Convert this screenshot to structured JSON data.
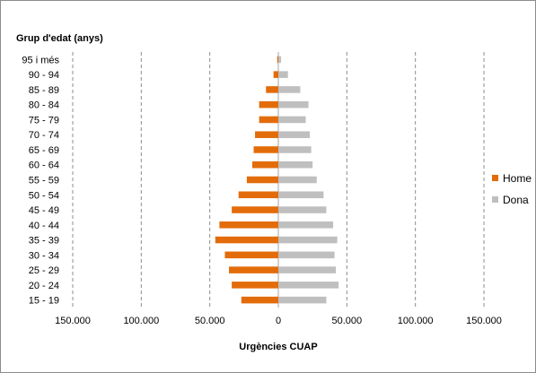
{
  "chart_data": {
    "type": "bar",
    "orientation": "horizontal-population-pyramid",
    "ylabel": "Grup d'edat (anys)",
    "xlabel": "Urgències  CUAP",
    "categories": [
      "95 i més",
      "90 - 94",
      "85 - 89",
      "80 - 84",
      "75 - 79",
      "70 - 74",
      "65 - 69",
      "60 - 64",
      "55 - 59",
      "50 - 54",
      "45 - 49",
      "40 - 44",
      "35 - 39",
      "30 - 34",
      "25 - 29",
      "20 - 24",
      "15 - 19"
    ],
    "series": [
      {
        "name": "Home",
        "color": "#E36C0A",
        "values": [
          800,
          3500,
          9000,
          14000,
          14000,
          17000,
          18000,
          19000,
          23000,
          29000,
          34000,
          43000,
          46000,
          39000,
          36000,
          34000,
          27000
        ]
      },
      {
        "name": "Dona",
        "color": "#BFBFBF",
        "values": [
          2000,
          7000,
          16000,
          22000,
          20000,
          23000,
          24000,
          25000,
          28000,
          33000,
          35000,
          40000,
          43000,
          41000,
          42000,
          44000,
          35000
        ]
      }
    ],
    "xticks": [
      -150000,
      -100000,
      -50000,
      0,
      50000,
      100000,
      150000
    ],
    "xtick_labels": [
      "150.000",
      "100.000",
      "50.000",
      "0",
      "50.000",
      "100.000",
      "150.000"
    ],
    "xlim": [
      -150000,
      150000
    ],
    "grid": "vertical-dashed",
    "legend_position": "right"
  }
}
